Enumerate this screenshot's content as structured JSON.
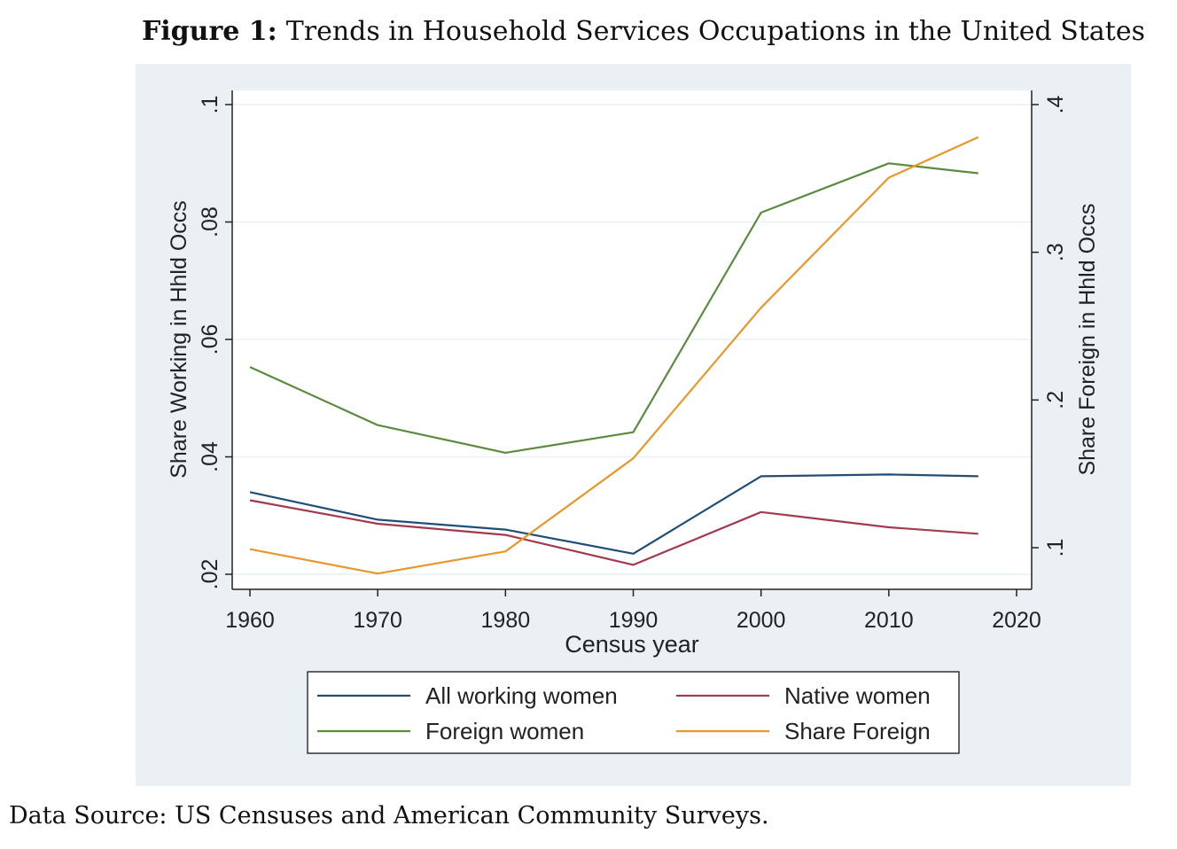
{
  "figure": {
    "label": "Figure 1:",
    "title": "Trends in Household Services Occupations in the United States",
    "source": "Data Source: US Censuses and American Community Surveys."
  },
  "chart_data": {
    "type": "line",
    "xlabel": "Census year",
    "ylabel_left": "Share Working in Hhld Occs",
    "ylabel_right": "Share Foreign in Hhld Occs",
    "x_ticks": [
      1960,
      1970,
      1980,
      1990,
      2000,
      2010,
      2020
    ],
    "y_left_ticks": [
      ".02",
      ".04",
      ".06",
      ".08",
      ".1"
    ],
    "y_left_tick_values": [
      0.02,
      0.04,
      0.06,
      0.08,
      0.1
    ],
    "y_right_ticks": [
      ".1",
      ".2",
      ".3",
      ".4"
    ],
    "y_right_tick_values": [
      0.1,
      0.2,
      0.3,
      0.4
    ],
    "xlim": [
      1960,
      2020
    ],
    "ylim_left": [
      0.02,
      0.1
    ],
    "ylim_right": [
      0.082,
      0.4
    ],
    "grid": true,
    "legend_position": "bottom",
    "series": [
      {
        "name": "All working women",
        "axis": "left",
        "color": "#1f4e79",
        "x": [
          1960,
          1970,
          1980,
          1990,
          2000,
          2010,
          2017
        ],
        "values": [
          0.034,
          0.0293,
          0.0276,
          0.0235,
          0.0367,
          0.037,
          0.0367
        ]
      },
      {
        "name": "Native women",
        "axis": "left",
        "color": "#a33a4f",
        "x": [
          1960,
          1970,
          1980,
          1990,
          2000,
          2010,
          2017
        ],
        "values": [
          0.0326,
          0.0286,
          0.0267,
          0.0216,
          0.0306,
          0.028,
          0.0269
        ]
      },
      {
        "name": "Foreign women",
        "axis": "left",
        "color": "#5d8b3e",
        "x": [
          1960,
          1970,
          1980,
          1990,
          2000,
          2010,
          2017
        ],
        "values": [
          0.0553,
          0.0454,
          0.0407,
          0.0442,
          0.0816,
          0.09,
          0.0883
        ]
      },
      {
        "name": "Share Foreign",
        "axis": "right",
        "color": "#e8972a",
        "x": [
          1960,
          1970,
          1980,
          1990,
          2000,
          2010,
          2017
        ],
        "values": [
          0.099,
          0.0825,
          0.0975,
          0.1605,
          0.2625,
          0.3505,
          0.378
        ]
      }
    ]
  }
}
